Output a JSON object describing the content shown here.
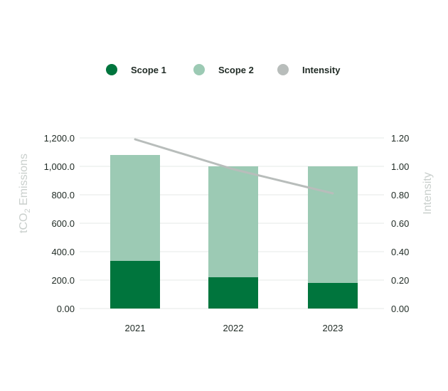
{
  "chart_data": {
    "type": "bar",
    "stacked": true,
    "categories": [
      "2021",
      "2022",
      "2023"
    ],
    "series": [
      {
        "name": "Scope 1",
        "kind": "bar",
        "color": "#00753d",
        "values": [
          335,
          220,
          180
        ]
      },
      {
        "name": "Scope 2",
        "kind": "bar",
        "color": "#9ccab4",
        "values": [
          745,
          780,
          820
        ]
      },
      {
        "name": "Intensity",
        "kind": "line",
        "axis": "right",
        "color": "#b8bdbb",
        "values": [
          1.19,
          0.98,
          0.81
        ]
      }
    ],
    "y_left": {
      "label_main": "tCO",
      "label_sub": "2",
      "label_rest": " Emissions",
      "lim": [
        0,
        1200
      ],
      "ticks": [
        "0.00",
        "200.0",
        "400.0",
        "600.0",
        "800.0",
        "1,000.0",
        "1,200.0"
      ]
    },
    "y_right": {
      "label": "Intensity",
      "lim": [
        0,
        1.2
      ],
      "ticks": [
        "0.00",
        "0.20",
        "0.40",
        "0.60",
        "0.80",
        "1.00",
        "1.20"
      ]
    },
    "legend_position": "top",
    "grid": true,
    "grid_color": "#e6e8e7"
  }
}
